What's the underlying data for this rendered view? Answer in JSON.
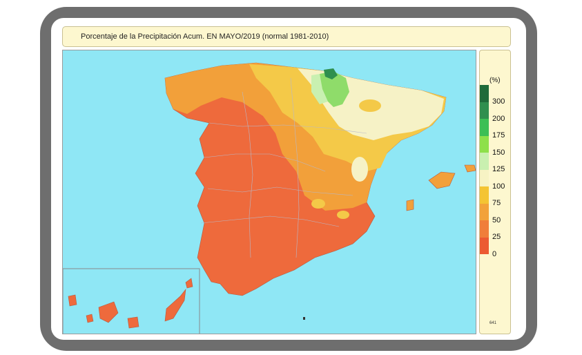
{
  "title": "Porcentaje de la Precipitación Acum. EN  MAYO/2019  (normal 1981-2010)",
  "legend": {
    "unit": "(%)",
    "labels": [
      "300",
      "200",
      "175",
      "150",
      "125",
      "100",
      "75",
      "50",
      "25",
      "0"
    ],
    "colors": [
      "#1f6b3a",
      "#2f8f4e",
      "#3cbf55",
      "#8ee04a",
      "#c9f0b0",
      "#f7f3c4",
      "#f4c433",
      "#f2a23a",
      "#f07e3a",
      "#ec5a32"
    ]
  },
  "code": "641",
  "colors": {
    "sea": "#8fe7f5",
    "land_main": "#ee6a3c",
    "land_orange": "#f2a03a",
    "land_yellow": "#f4c948",
    "land_pale": "#f6f2c6",
    "land_green": "#8fdc6a"
  }
}
